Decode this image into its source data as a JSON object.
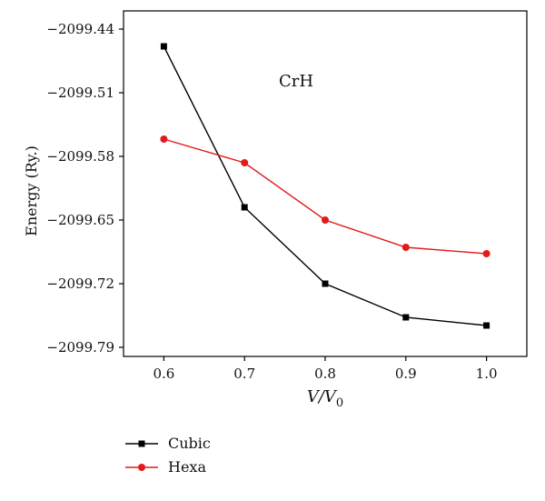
{
  "chart_data": {
    "type": "line",
    "title": "",
    "annotation": "CrH",
    "xlabel": "V/V0",
    "ylabel": "Energy (Ry.)",
    "x": [
      0.6,
      0.7,
      0.8,
      0.9,
      1.0
    ],
    "x_tick_labels": [
      "0.6",
      "0.7",
      "0.8",
      "0.9",
      "1.0"
    ],
    "y_tick_labels": [
      "−2099.44",
      "−2099.51",
      "−2099.58",
      "−2099.65",
      "−2099.72",
      "−2099.79"
    ],
    "y_ticks": [
      -2099.44,
      -2099.51,
      -2099.58,
      -2099.65,
      -2099.72,
      -2099.79
    ],
    "xlim": [
      0.55,
      1.05
    ],
    "ylim": [
      -2099.8,
      -2099.42
    ],
    "grid": false,
    "legend_placement": "bottom-left",
    "series": [
      {
        "name": "Cubic",
        "marker": "square",
        "color": "#000000",
        "values": [
          -2099.459,
          -2099.636,
          -2099.72,
          -2099.757,
          -2099.766
        ]
      },
      {
        "name": "Hexa",
        "marker": "circle",
        "color": "#e41a1a",
        "values": [
          -2099.561,
          -2099.587,
          -2099.65,
          -2099.68,
          -2099.687
        ]
      }
    ]
  }
}
